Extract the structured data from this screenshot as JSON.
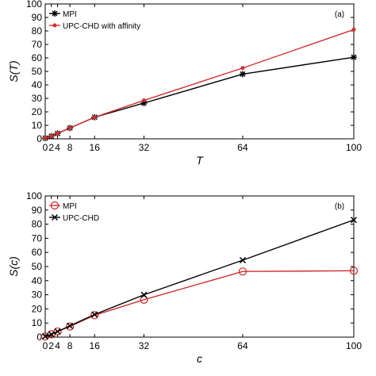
{
  "chart_data": [
    {
      "type": "line",
      "panel_label": "(a)",
      "xlabel": "T",
      "ylabel": "S(T)",
      "xlim": [
        0,
        100
      ],
      "ylim": [
        0,
        100
      ],
      "x_ticks": [
        0,
        2,
        4,
        8,
        16,
        32,
        64,
        100
      ],
      "y_ticks": [
        0,
        10,
        20,
        30,
        40,
        50,
        60,
        70,
        80,
        90,
        100
      ],
      "legend_position": "top-left",
      "series": [
        {
          "name": "MPI",
          "color": "#000000",
          "marker": "asterisk",
          "x": [
            0,
            2,
            4,
            8,
            16,
            32,
            64,
            100
          ],
          "y": [
            0.5,
            2,
            4,
            8,
            16,
            26.5,
            48,
            60.5
          ]
        },
        {
          "name": "UPC-CHD with affinity",
          "color": "#d03030",
          "marker": "dot",
          "x": [
            0,
            2,
            4,
            8,
            16,
            32,
            64,
            100
          ],
          "y": [
            0.5,
            2,
            4,
            8,
            16,
            28.5,
            52.5,
            81
          ]
        }
      ]
    },
    {
      "type": "line",
      "panel_label": "(b)",
      "xlabel": "c",
      "ylabel": "S(c)",
      "xlim": [
        0,
        100
      ],
      "ylim": [
        0,
        100
      ],
      "x_ticks": [
        0,
        2,
        4,
        8,
        16,
        32,
        64,
        100
      ],
      "y_ticks": [
        0,
        10,
        20,
        30,
        40,
        50,
        60,
        70,
        80,
        90,
        100
      ],
      "legend_position": "top-left",
      "series": [
        {
          "name": "MPI",
          "color": "#d03030",
          "marker": "circle",
          "x": [
            0,
            2,
            4,
            8,
            16,
            32,
            64,
            100
          ],
          "y": [
            0.5,
            2,
            4,
            7.5,
            15.5,
            26.5,
            46.5,
            47
          ]
        },
        {
          "name": "UPC-CHD",
          "color": "#000000",
          "marker": "x",
          "x": [
            0,
            2,
            4,
            8,
            16,
            32,
            64,
            100
          ],
          "y": [
            0.5,
            2,
            4,
            8,
            16,
            30,
            54.5,
            83
          ]
        }
      ]
    }
  ]
}
